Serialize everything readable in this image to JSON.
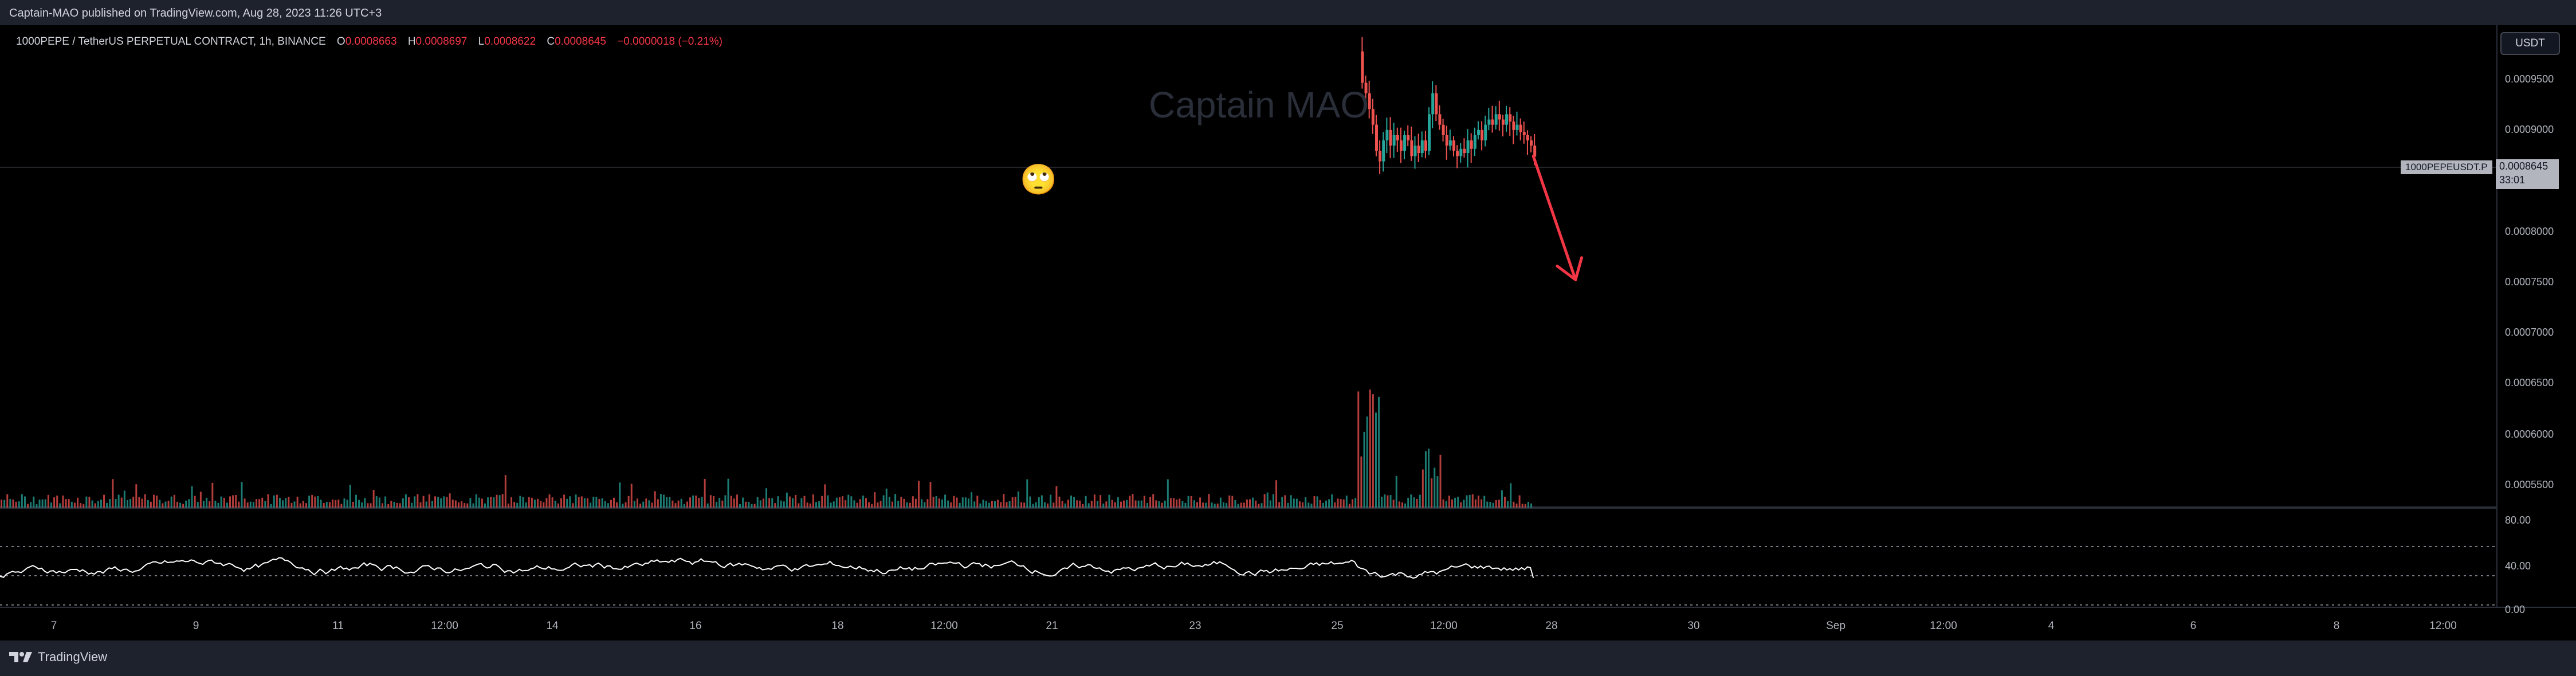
{
  "header": {
    "published_by": "Captain-MAO published on TradingView.com, Aug 28, 2023 11:26 UTC+3"
  },
  "legend": {
    "symbol": "1000PEPE / TetherUS PERPETUAL CONTRACT, 1h, BINANCE",
    "open_label": "O",
    "open_value": "0.0008663",
    "high_label": "H",
    "high_value": "0.0008697",
    "low_label": "L",
    "low_value": "0.0008622",
    "close_label": "C",
    "close_value": "0.0008645",
    "change": "−0.0000018 (−0.21%)"
  },
  "watermark": "Captain MAO",
  "annotation_emoji": "🙄",
  "currency_button": "USDT",
  "price_tag_symbol": "1000PEPEUSDT.P",
  "last_price": "0.0008645",
  "countdown": "33:01",
  "price_axis_labels": [
    "0.0009500",
    "0.0009000",
    "0.0008000",
    "0.0007500",
    "0.0007000",
    "0.0006500",
    "0.0006000",
    "0.0005500"
  ],
  "oscillator_axis_labels": [
    "80.00",
    "40.00",
    "0.00"
  ],
  "time_axis_labels": [
    "7",
    "9",
    "11",
    "12:00",
    "14",
    "16",
    "18",
    "12:00",
    "21",
    "23",
    "25",
    "12:00",
    "28",
    "30",
    "Sep",
    "12:00",
    "4",
    "6",
    "8",
    "12:00"
  ],
  "footer": {
    "brand": "TradingView"
  },
  "colors": {
    "up": "#26a69a",
    "down": "#ef5350",
    "arrow": "#f23645",
    "background": "#000000"
  },
  "chart_data": {
    "type": "candlestick",
    "title": "1000PEPE / TetherUS PERPETUAL CONTRACT, 1h, BINANCE",
    "price_range": [
      0.00053,
      0.00099
    ],
    "ohlc_last": {
      "open": 0.0008663,
      "high": 0.0008697,
      "low": 0.0008622,
      "close": 0.0008645
    },
    "price_path": [
      [
        25.0,
        0.000965
      ],
      [
        25.05,
        0.000935
      ],
      [
        25.1,
        0.000925
      ],
      [
        25.15,
        0.00091
      ],
      [
        25.2,
        0.000895
      ],
      [
        25.25,
        0.00087
      ],
      [
        25.3,
        0.00086
      ],
      [
        25.35,
        0.00088
      ],
      [
        25.4,
        0.00089
      ],
      [
        25.45,
        0.000875
      ],
      [
        25.5,
        0.000885
      ],
      [
        25.55,
        0.00088
      ],
      [
        25.6,
        0.00087
      ],
      [
        25.65,
        0.000885
      ],
      [
        25.7,
        0.00088
      ],
      [
        25.75,
        0.000865
      ],
      [
        25.8,
        0.000875
      ],
      [
        25.85,
        0.000868
      ],
      [
        25.9,
        0.00088
      ],
      [
        25.95,
        0.00087
      ],
      [
        26.0,
        0.000905
      ],
      [
        26.05,
        0.000925
      ],
      [
        26.1,
        0.000905
      ],
      [
        26.15,
        0.000895
      ],
      [
        26.2,
        0.000885
      ],
      [
        26.25,
        0.000875
      ],
      [
        26.3,
        0.00088
      ],
      [
        26.35,
        0.00087
      ],
      [
        26.4,
        0.000865
      ],
      [
        26.45,
        0.000872
      ],
      [
        26.5,
        0.000868
      ],
      [
        26.55,
        0.00088
      ],
      [
        26.6,
        0.000872
      ],
      [
        26.65,
        0.000885
      ],
      [
        26.7,
        0.00089
      ],
      [
        26.75,
        0.00088
      ],
      [
        26.8,
        0.000895
      ],
      [
        26.85,
        0.0009
      ],
      [
        26.9,
        0.000895
      ],
      [
        26.95,
        0.000905
      ],
      [
        27.0,
        0.0009
      ],
      [
        27.05,
        0.000895
      ],
      [
        27.1,
        0.000905
      ],
      [
        27.15,
        0.000898
      ],
      [
        27.2,
        0.00089
      ],
      [
        27.25,
        0.000895
      ],
      [
        27.3,
        0.000888
      ],
      [
        27.35,
        0.000885
      ],
      [
        27.4,
        0.00088
      ],
      [
        27.45,
        0.000875
      ],
      [
        27.5,
        0.0008645
      ]
    ],
    "projection_arrow": {
      "from": [
        27.5,
        0.000865
      ],
      "to": [
        28.1,
        0.000747
      ]
    },
    "volume_series": {
      "x_start": 5.0,
      "x_end": 27.5,
      "typical_level": "low, spikes near 25 and 26"
    },
    "rsi": {
      "range": [
        0,
        80
      ],
      "guides": [
        80,
        40,
        0
      ],
      "last_value": 37
    },
    "x_axis": {
      "start_day": 5.7,
      "end_day": 41.2
    }
  }
}
